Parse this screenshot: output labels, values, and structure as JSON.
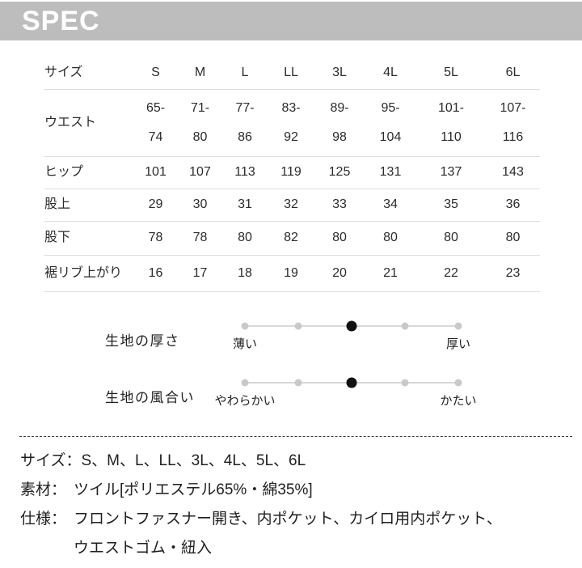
{
  "header": {
    "title": "SPEC"
  },
  "table": {
    "corner_label": "サイズ",
    "columns": [
      "S",
      "M",
      "L",
      "LL",
      "3L",
      "4L",
      "5L",
      "6L"
    ],
    "rows": [
      {
        "label": "ウエスト",
        "values": [
          "65-\n74",
          "71-\n80",
          "77-\n86",
          "83-\n92",
          "89-\n98",
          "95-\n104",
          "101-\n110",
          "107-\n116"
        ]
      },
      {
        "label": "ヒップ",
        "values": [
          "101",
          "107",
          "113",
          "119",
          "125",
          "131",
          "137",
          "143"
        ]
      },
      {
        "label": "股上",
        "values": [
          "29",
          "30",
          "31",
          "32",
          "33",
          "34",
          "35",
          "36"
        ]
      },
      {
        "label": "股下",
        "values": [
          "78",
          "78",
          "80",
          "82",
          "80",
          "80",
          "80",
          "80"
        ]
      },
      {
        "label": "裾リブ上がり",
        "values": [
          "16",
          "17",
          "18",
          "19",
          "20",
          "21",
          "22",
          "23"
        ]
      }
    ]
  },
  "scales": {
    "thickness": {
      "label": "生地の厚さ",
      "left": "薄い",
      "right": "厚い",
      "levels": 5,
      "value": 3
    },
    "texture": {
      "label": "生地の風合い",
      "left": "やわらかい",
      "right": "かたい",
      "levels": 5,
      "value": 3
    }
  },
  "details": [
    {
      "label": "サイズ：",
      "value": "S、M、L、LL、3L、4L、5L、6L"
    },
    {
      "label": "素材：",
      "value": "ツイル[ポリエステル65%・綿35%]"
    },
    {
      "label": "仕様：",
      "value": "フロントファスナー開き、内ポケット、カイロ用内ポケット、\nウエストゴム・紐入"
    }
  ],
  "colors": {
    "header_bg": "#bdbdbd",
    "header_text": "#ffffff",
    "row_line": "#dcdcdc",
    "track": "#d8d8d8",
    "dot_inactive": "#c9c9c9",
    "dot_active": "#111111",
    "text": "#2b2b2b"
  }
}
